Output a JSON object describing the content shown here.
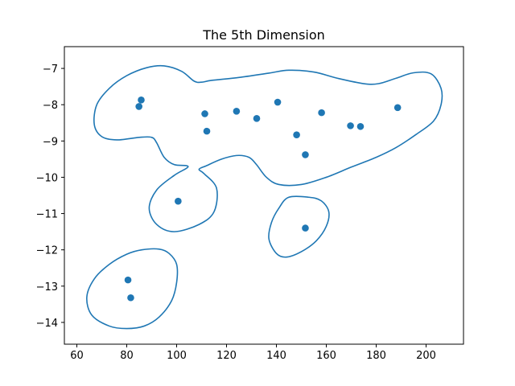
{
  "chart_data": {
    "type": "scatter",
    "title": "The 5th Dimension",
    "xlabel": "",
    "ylabel": "",
    "xlim": [
      55,
      215
    ],
    "ylim": [
      -14.6,
      -6.4
    ],
    "xticks": [
      60,
      80,
      100,
      120,
      140,
      160,
      180,
      200
    ],
    "yticks": [
      -7,
      -8,
      -9,
      -10,
      -11,
      -12,
      -13,
      -14
    ],
    "xtick_labels": [
      "60",
      "80",
      "100",
      "120",
      "140",
      "160",
      "180",
      "200"
    ],
    "ytick_labels": [
      "−7",
      "−8",
      "−9",
      "−10",
      "−11",
      "−12",
      "−13",
      "−14"
    ],
    "grid": false,
    "legend": false,
    "color": "#1f77b4",
    "points": [
      {
        "x": 85.8,
        "y": -7.87
      },
      {
        "x": 84.9,
        "y": -8.05
      },
      {
        "x": 111.3,
        "y": -8.25
      },
      {
        "x": 112.1,
        "y": -8.73
      },
      {
        "x": 124.0,
        "y": -8.18
      },
      {
        "x": 132.1,
        "y": -8.38
      },
      {
        "x": 140.5,
        "y": -7.93
      },
      {
        "x": 148.1,
        "y": -8.83
      },
      {
        "x": 151.6,
        "y": -9.38
      },
      {
        "x": 158.1,
        "y": -8.22
      },
      {
        "x": 169.7,
        "y": -8.58
      },
      {
        "x": 173.7,
        "y": -8.6
      },
      {
        "x": 188.6,
        "y": -8.08
      },
      {
        "x": 100.6,
        "y": -10.66
      },
      {
        "x": 151.6,
        "y": -11.4
      },
      {
        "x": 80.5,
        "y": -12.83
      },
      {
        "x": 81.6,
        "y": -13.32
      }
    ],
    "contours": [
      [
        [
          88,
          -6.98
        ],
        [
          95,
          -6.93
        ],
        [
          102,
          -7.08
        ],
        [
          107,
          -7.35
        ],
        [
          110,
          -7.38
        ],
        [
          114,
          -7.33
        ],
        [
          125,
          -7.25
        ],
        [
          137,
          -7.13
        ],
        [
          145,
          -7.05
        ],
        [
          155,
          -7.1
        ],
        [
          165,
          -7.28
        ],
        [
          175,
          -7.42
        ],
        [
          181,
          -7.42
        ],
        [
          188,
          -7.27
        ],
        [
          195,
          -7.12
        ],
        [
          202,
          -7.15
        ],
        [
          206,
          -7.55
        ],
        [
          206,
          -8.0
        ],
        [
          203,
          -8.45
        ],
        [
          196,
          -8.82
        ],
        [
          188,
          -9.18
        ],
        [
          180,
          -9.45
        ],
        [
          170,
          -9.72
        ],
        [
          160,
          -10.0
        ],
        [
          150,
          -10.2
        ],
        [
          141,
          -10.2
        ],
        [
          136,
          -10.0
        ],
        [
          132,
          -9.65
        ],
        [
          129,
          -9.45
        ],
        [
          124,
          -9.4
        ],
        [
          118,
          -9.5
        ],
        [
          112,
          -9.68
        ],
        [
          109,
          -9.78
        ],
        [
          111,
          -9.9
        ],
        [
          116,
          -10.3
        ],
        [
          115,
          -10.95
        ],
        [
          109,
          -11.3
        ],
        [
          99,
          -11.5
        ],
        [
          92,
          -11.3
        ],
        [
          89,
          -10.85
        ],
        [
          92,
          -10.35
        ],
        [
          99,
          -9.95
        ],
        [
          104,
          -9.75
        ],
        [
          104,
          -9.68
        ],
        [
          99,
          -9.65
        ],
        [
          95,
          -9.45
        ],
        [
          92,
          -9.05
        ],
        [
          90,
          -8.9
        ],
        [
          85,
          -8.9
        ],
        [
          76,
          -8.97
        ],
        [
          70,
          -8.88
        ],
        [
          67,
          -8.55
        ],
        [
          68,
          -8.0
        ],
        [
          73,
          -7.55
        ],
        [
          80,
          -7.2
        ],
        [
          88,
          -6.98
        ]
      ],
      [
        [
          145,
          -10.55
        ],
        [
          153,
          -10.55
        ],
        [
          158,
          -10.65
        ],
        [
          161,
          -10.95
        ],
        [
          160,
          -11.35
        ],
        [
          156,
          -11.75
        ],
        [
          150,
          -12.05
        ],
        [
          144,
          -12.2
        ],
        [
          140,
          -12.1
        ],
        [
          137,
          -11.7
        ],
        [
          138,
          -11.25
        ],
        [
          141,
          -10.85
        ],
        [
          145,
          -10.55
        ]
      ],
      [
        [
          86,
          -12.0
        ],
        [
          93,
          -11.98
        ],
        [
          97,
          -12.1
        ],
        [
          100,
          -12.4
        ],
        [
          100,
          -12.9
        ],
        [
          98,
          -13.4
        ],
        [
          93,
          -13.85
        ],
        [
          87,
          -14.1
        ],
        [
          80,
          -14.17
        ],
        [
          73,
          -14.1
        ],
        [
          66,
          -13.8
        ],
        [
          64,
          -13.3
        ],
        [
          67,
          -12.8
        ],
        [
          73,
          -12.4
        ],
        [
          80,
          -12.12
        ],
        [
          86,
          -12.0
        ]
      ]
    ]
  }
}
